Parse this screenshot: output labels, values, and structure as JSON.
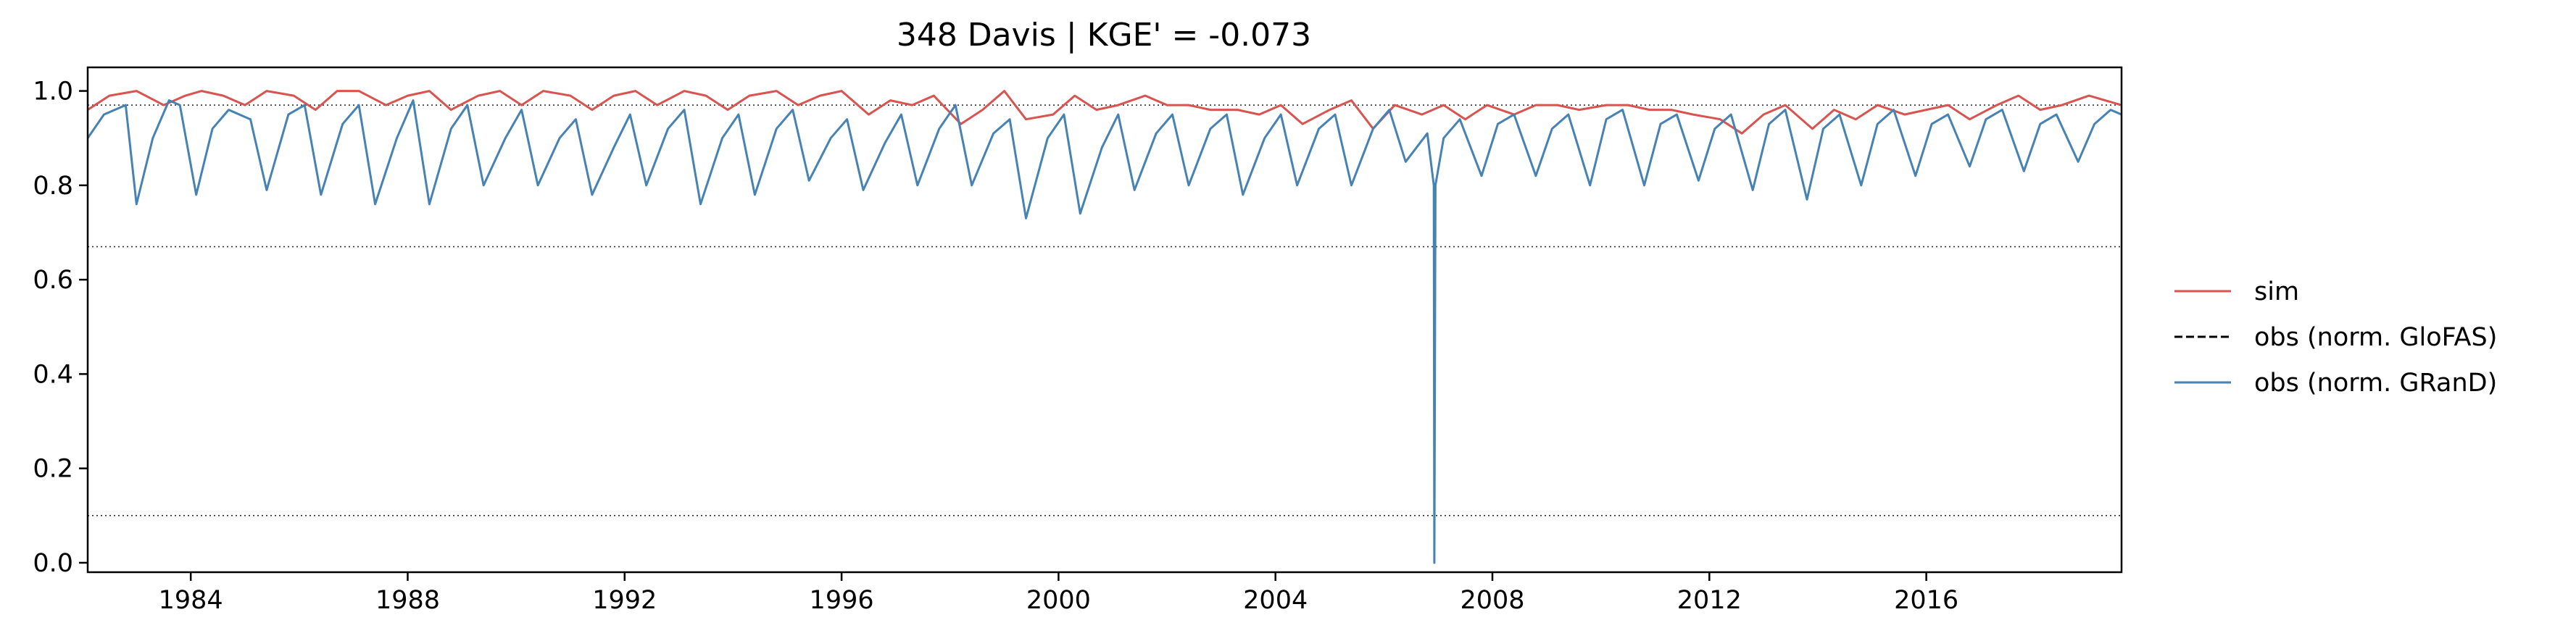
{
  "chart_data": {
    "type": "line",
    "title": "348  Davis | KGE' = -0.073",
    "xlabel": "",
    "ylabel": "",
    "xlim": [
      1982.1,
      2019.6
    ],
    "ylim": [
      -0.02,
      1.05
    ],
    "x_ticks": [
      1984,
      1988,
      1992,
      1996,
      2000,
      2004,
      2008,
      2012,
      2016
    ],
    "x_tick_labels": [
      "1984",
      "1988",
      "1992",
      "1996",
      "2000",
      "2004",
      "2008",
      "2012",
      "2016"
    ],
    "y_ticks": [
      0.0,
      0.2,
      0.4,
      0.6,
      0.8,
      1.0
    ],
    "y_tick_labels": [
      "0.0",
      "0.2",
      "0.4",
      "0.6",
      "0.8",
      "1.0"
    ],
    "grid": false,
    "reference_lines_y": [
      0.97,
      0.67,
      0.1
    ],
    "legend_position": "right",
    "series": [
      {
        "name": "sim",
        "color": "#d9534f",
        "style": "solid",
        "x": [
          1982.1,
          1982.5,
          1983.0,
          1983.5,
          1983.9,
          1984.2,
          1984.6,
          1985.0,
          1985.4,
          1985.9,
          1986.3,
          1986.7,
          1987.1,
          1987.6,
          1988.0,
          1988.4,
          1988.8,
          1989.3,
          1989.7,
          1990.1,
          1990.5,
          1991.0,
          1991.4,
          1991.8,
          1992.2,
          1992.6,
          1993.1,
          1993.5,
          1993.9,
          1994.3,
          1994.8,
          1995.2,
          1995.6,
          1996.0,
          1996.5,
          1996.9,
          1997.3,
          1997.7,
          1998.2,
          1998.6,
          1999.0,
          1999.4,
          1999.9,
          2000.3,
          2000.7,
          2001.1,
          2001.6,
          2002.0,
          2002.4,
          2002.8,
          2003.3,
          2003.7,
          2004.1,
          2004.5,
          2005.0,
          2005.4,
          2005.8,
          2006.2,
          2006.7,
          2007.1,
          2007.5,
          2007.9,
          2008.4,
          2008.8,
          2009.2,
          2009.6,
          2010.1,
          2010.5,
          2010.9,
          2011.3,
          2011.7,
          2012.2,
          2012.6,
          2013.0,
          2013.4,
          2013.9,
          2014.3,
          2014.7,
          2015.1,
          2015.6,
          2016.0,
          2016.4,
          2016.8,
          2017.3,
          2017.7,
          2018.1,
          2018.5,
          2019.0,
          2019.6
        ],
        "values": [
          0.96,
          0.99,
          1.0,
          0.97,
          0.99,
          1.0,
          0.99,
          0.97,
          1.0,
          0.99,
          0.96,
          1.0,
          1.0,
          0.97,
          0.99,
          1.0,
          0.96,
          0.99,
          1.0,
          0.97,
          1.0,
          0.99,
          0.96,
          0.99,
          1.0,
          0.97,
          1.0,
          0.99,
          0.96,
          0.99,
          1.0,
          0.97,
          0.99,
          1.0,
          0.95,
          0.98,
          0.97,
          0.99,
          0.93,
          0.96,
          1.0,
          0.94,
          0.95,
          0.99,
          0.96,
          0.97,
          0.99,
          0.97,
          0.97,
          0.96,
          0.96,
          0.95,
          0.97,
          0.93,
          0.96,
          0.98,
          0.92,
          0.97,
          0.95,
          0.97,
          0.94,
          0.97,
          0.95,
          0.97,
          0.97,
          0.96,
          0.97,
          0.97,
          0.96,
          0.96,
          0.95,
          0.94,
          0.91,
          0.95,
          0.97,
          0.92,
          0.96,
          0.94,
          0.97,
          0.95,
          0.96,
          0.97,
          0.94,
          0.97,
          0.99,
          0.96,
          0.97,
          0.99,
          0.97
        ]
      },
      {
        "name": "obs (norm. GloFAS)",
        "color": "#000000",
        "style": "dashed",
        "x": [],
        "values": []
      },
      {
        "name": "obs (norm. GRanD)",
        "color": "#4682b4",
        "style": "solid",
        "x": [
          1982.1,
          1982.4,
          1982.8,
          1983.0,
          1983.3,
          1983.6,
          1983.8,
          1984.1,
          1984.4,
          1984.7,
          1985.1,
          1985.4,
          1985.8,
          1986.1,
          1986.4,
          1986.8,
          1987.1,
          1987.4,
          1987.8,
          1988.1,
          1988.4,
          1988.8,
          1989.1,
          1989.4,
          1989.8,
          1990.1,
          1990.4,
          1990.8,
          1991.1,
          1991.4,
          1991.8,
          1992.1,
          1992.4,
          1992.8,
          1993.1,
          1993.4,
          1993.8,
          1994.1,
          1994.4,
          1994.8,
          1995.1,
          1995.4,
          1995.8,
          1996.1,
          1996.4,
          1996.8,
          1997.1,
          1997.4,
          1997.8,
          1998.1,
          1998.4,
          1998.8,
          1999.1,
          1999.4,
          1999.8,
          2000.1,
          2000.4,
          2000.8,
          2001.1,
          2001.4,
          2001.8,
          2002.1,
          2002.4,
          2002.8,
          2003.1,
          2003.4,
          2003.8,
          2004.1,
          2004.4,
          2004.8,
          2005.1,
          2005.4,
          2005.8,
          2006.1,
          2006.4,
          2006.8,
          2006.92,
          2006.93,
          2006.95,
          2007.1,
          2007.4,
          2007.8,
          2008.1,
          2008.4,
          2008.8,
          2009.1,
          2009.4,
          2009.8,
          2010.1,
          2010.4,
          2010.8,
          2011.1,
          2011.4,
          2011.8,
          2012.1,
          2012.4,
          2012.8,
          2013.1,
          2013.4,
          2013.8,
          2014.1,
          2014.4,
          2014.8,
          2015.1,
          2015.4,
          2015.8,
          2016.1,
          2016.4,
          2016.8,
          2017.1,
          2017.4,
          2017.8,
          2018.1,
          2018.4,
          2018.8,
          2019.1,
          2019.4,
          2019.6
        ],
        "values": [
          0.9,
          0.95,
          0.97,
          0.76,
          0.9,
          0.98,
          0.97,
          0.78,
          0.92,
          0.96,
          0.94,
          0.79,
          0.95,
          0.97,
          0.78,
          0.93,
          0.97,
          0.76,
          0.9,
          0.98,
          0.76,
          0.92,
          0.97,
          0.8,
          0.9,
          0.96,
          0.8,
          0.9,
          0.94,
          0.78,
          0.88,
          0.95,
          0.8,
          0.92,
          0.96,
          0.76,
          0.9,
          0.95,
          0.78,
          0.92,
          0.96,
          0.81,
          0.9,
          0.94,
          0.79,
          0.89,
          0.95,
          0.8,
          0.92,
          0.97,
          0.8,
          0.91,
          0.94,
          0.73,
          0.9,
          0.95,
          0.74,
          0.88,
          0.95,
          0.79,
          0.91,
          0.95,
          0.8,
          0.92,
          0.95,
          0.78,
          0.9,
          0.95,
          0.8,
          0.92,
          0.95,
          0.8,
          0.92,
          0.96,
          0.85,
          0.91,
          0.8,
          0.0,
          0.8,
          0.9,
          0.94,
          0.82,
          0.93,
          0.95,
          0.82,
          0.92,
          0.95,
          0.8,
          0.94,
          0.96,
          0.8,
          0.93,
          0.95,
          0.81,
          0.92,
          0.95,
          0.79,
          0.93,
          0.96,
          0.77,
          0.92,
          0.95,
          0.8,
          0.93,
          0.96,
          0.82,
          0.93,
          0.95,
          0.84,
          0.94,
          0.96,
          0.83,
          0.93,
          0.95,
          0.85,
          0.93,
          0.96,
          0.95
        ]
      }
    ]
  }
}
